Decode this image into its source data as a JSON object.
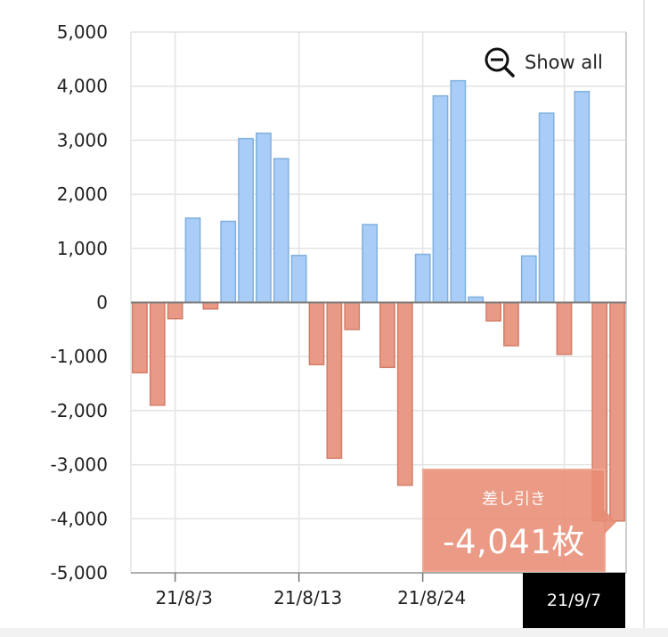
{
  "controls": {
    "show_all_label": "Show all",
    "zoom_icon": "zoom-out-icon"
  },
  "tooltip": {
    "label": "差し引き",
    "value": "-4,041枚"
  },
  "x_tip": {
    "label": "21/9/7"
  },
  "colors": {
    "positive_fill": "#a9cdf7",
    "positive_stroke": "#7fb0dd",
    "negative_fill": "#e99a86",
    "negative_stroke": "#d27e68",
    "grid": "#e3e3e3",
    "zero_line": "#7a7a7a"
  },
  "chart_data": {
    "type": "bar",
    "title": "",
    "xlabel": "",
    "ylabel": "",
    "ylim": [
      -5000,
      5000
    ],
    "y_ticks": [
      "5,000",
      "4,000",
      "3,000",
      "2,000",
      "1,000",
      "0",
      "-1,000",
      "-2,000",
      "-3,000",
      "-4,000",
      "-5,000"
    ],
    "x_tick_labels": [
      "21/8/3",
      "21/8/13",
      "21/8/24"
    ],
    "x_tick_positions": [
      3,
      10,
      17
    ],
    "grid": true,
    "series": [
      {
        "name": "差し引き",
        "values": [
          -1300,
          -1900,
          -300,
          1560,
          -120,
          1500,
          3030,
          3130,
          2660,
          870,
          -1150,
          -2880,
          -500,
          1440,
          -1200,
          -3380,
          890,
          3820,
          4100,
          100,
          -340,
          -800,
          860,
          3500,
          -960,
          3900,
          -4041,
          -4041
        ]
      }
    ]
  }
}
